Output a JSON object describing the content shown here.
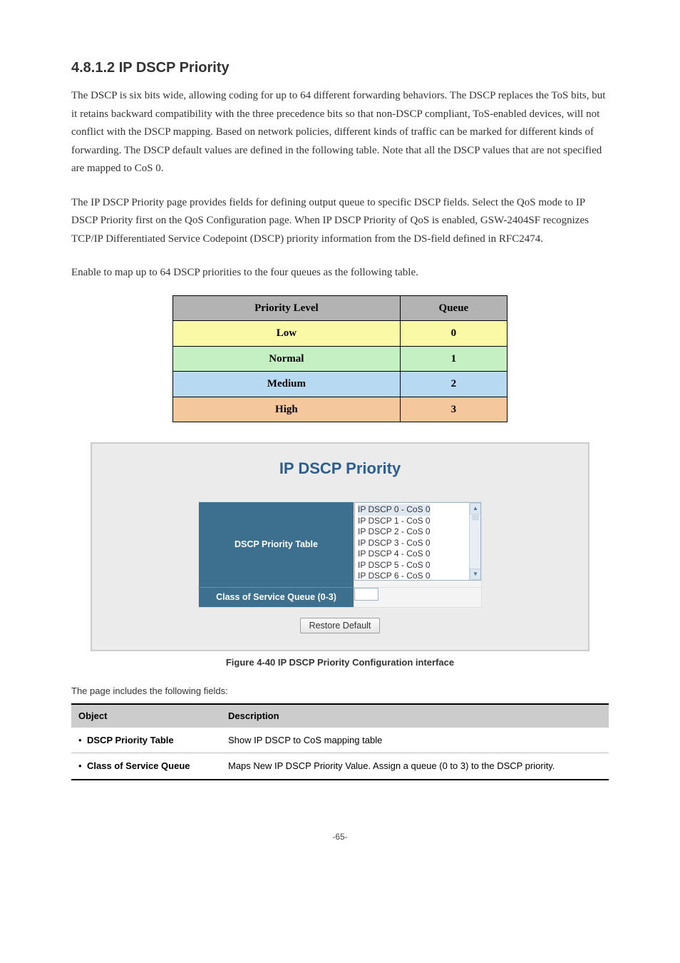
{
  "section": {
    "number": "4.8.1.2",
    "title": "IP DSCP Priority"
  },
  "intro_paragraphs": [
    "The DSCP is six bits wide, allowing coding for up to 64 different forwarding behaviors. The DSCP replaces the ToS bits, but it retains backward compatibility with the three precedence bits so that non-DSCP compliant, ToS-enabled devices, will not conflict with the DSCP mapping. Based on network policies, different kinds of traffic can be marked for different kinds of forwarding. The DSCP default values are defined in the following table. Note that all the DSCP values that are not specified are mapped to CoS 0.",
    "The IP DSCP Priority page provides fields for defining output queue to specific DSCP fields. Select the QoS mode to IP DSCP Priority first on the QoS Configuration page. When IP DSCP Priority of QoS is enabled, GSW-2404SF recognizes TCP/IP Differentiated Service Codepoint (DSCP) priority information from the DS-field defined in RFC2474.",
    "Enable to map up to 64 DSCP priorities to the four queues as the following table."
  ],
  "priority_table": {
    "headers": [
      "Priority Level",
      "Queue"
    ],
    "rows": [
      {
        "label": "Low",
        "queue": "0",
        "bg": "#f9f9a6"
      },
      {
        "label": "Normal",
        "queue": "1",
        "bg": "#c4f0c4"
      },
      {
        "label": "Medium",
        "queue": "2",
        "bg": "#b8d9f2"
      },
      {
        "label": "High",
        "queue": "3",
        "bg": "#f5c79c"
      }
    ]
  },
  "figure": {
    "panel_title": "IP DSCP Priority",
    "row1_label": "DSCP Priority Table",
    "row2_label": "Class of Service Queue (0-3)",
    "listbox_items": [
      "IP DSCP 0 - CoS 0",
      "IP DSCP 1 - CoS 0",
      "IP DSCP 2 - CoS 0",
      "IP DSCP 3 - CoS 0",
      "IP DSCP 4 - CoS 0",
      "IP DSCP 5 - CoS 0",
      "IP DSCP 6 - CoS 0"
    ],
    "button_label": "Restore Default",
    "caption": "Figure 4-40 IP DSCP Priority Configuration interface"
  },
  "obj_description": {
    "lead": "The page includes the following fields:",
    "columns": [
      "Object",
      "Description"
    ],
    "rows": [
      {
        "object": "DSCP Priority Table",
        "desc": "Show IP DSCP to CoS mapping table"
      },
      {
        "object": "Class of Service Queue",
        "desc": "Maps New IP DSCP Priority Value. Assign a queue (0 to 3) to the DSCP priority."
      }
    ]
  },
  "footer": {
    "page": "-65-"
  }
}
